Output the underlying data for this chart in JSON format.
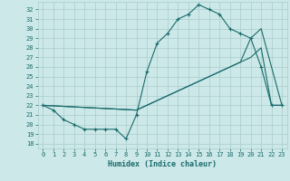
{
  "xlabel": "Humidex (Indice chaleur)",
  "bg_color": "#cce8e8",
  "grid_color": "#aacccc",
  "line_color": "#1a6b6b",
  "xlim": [
    -0.5,
    23.5
  ],
  "ylim": [
    17.5,
    32.8
  ],
  "yticks": [
    18,
    19,
    20,
    21,
    22,
    23,
    24,
    25,
    26,
    27,
    28,
    29,
    30,
    31,
    32
  ],
  "xticks": [
    0,
    1,
    2,
    3,
    4,
    5,
    6,
    7,
    8,
    9,
    10,
    11,
    12,
    13,
    14,
    15,
    16,
    17,
    18,
    19,
    20,
    21,
    22,
    23
  ],
  "line1_x": [
    0,
    1,
    2,
    3,
    4,
    5,
    6,
    7,
    8,
    9,
    10,
    11,
    12,
    13,
    14,
    15,
    16,
    17,
    18,
    19,
    20,
    21,
    22,
    23
  ],
  "line1_y": [
    22.0,
    21.5,
    20.5,
    20.0,
    19.5,
    19.5,
    19.5,
    19.5,
    18.5,
    21.0,
    25.5,
    28.5,
    29.5,
    31.0,
    31.5,
    32.5,
    32.0,
    31.5,
    30.0,
    29.5,
    29.0,
    26.0,
    22.0,
    22.0
  ],
  "line2_x": [
    0,
    9,
    10,
    11,
    12,
    13,
    14,
    15,
    16,
    17,
    18,
    19,
    20,
    21,
    22,
    23
  ],
  "line2_y": [
    22.0,
    21.5,
    22.0,
    22.5,
    23.0,
    23.5,
    24.0,
    24.5,
    25.0,
    25.5,
    26.0,
    26.5,
    29.0,
    30.0,
    26.0,
    22.0
  ],
  "line3_x": [
    0,
    9,
    10,
    11,
    12,
    13,
    14,
    15,
    16,
    17,
    18,
    19,
    20,
    21,
    22,
    23
  ],
  "line3_y": [
    22.0,
    21.5,
    22.0,
    22.5,
    23.0,
    23.5,
    24.0,
    24.5,
    25.0,
    25.5,
    26.0,
    26.5,
    27.0,
    28.0,
    22.0,
    22.0
  ]
}
